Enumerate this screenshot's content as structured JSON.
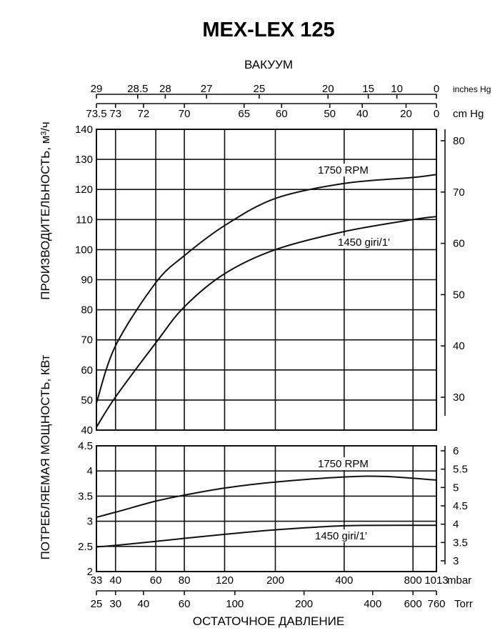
{
  "title": "MEX-LEX 125",
  "chart_data": [
    {
      "type": "line",
      "panel": "capacity",
      "ylabel": "ПРОИЗВОДИТЕЛЬНОСТЬ, м³/ч",
      "ylim": [
        40,
        140
      ],
      "yticks": [
        40,
        50,
        60,
        70,
        80,
        90,
        100,
        110,
        120,
        130,
        140
      ],
      "y2ticks": [
        30,
        40,
        50,
        60,
        70,
        80
      ],
      "xscale": "log",
      "xlabel": "ОСТАТОЧНОЕ ДАВЛЕНИЕ",
      "x_unit": "mbar",
      "grid": true,
      "series": [
        {
          "name": "1750 RPM",
          "x": [
            33,
            40,
            60,
            80,
            120,
            200,
            400,
            800,
            1013
          ],
          "y": [
            49,
            68,
            89,
            98,
            108,
            117,
            122,
            124,
            125
          ]
        },
        {
          "name": "1450 giri/1'",
          "x": [
            33,
            40,
            60,
            80,
            120,
            200,
            400,
            800,
            1013
          ],
          "y": [
            41,
            51,
            69,
            81,
            92,
            100,
            106,
            110,
            111
          ]
        }
      ]
    },
    {
      "type": "line",
      "panel": "power",
      "ylabel": "ПОТРЕБЛЯЕМАЯ МОЩНОСТЬ, КВт",
      "ylim": [
        2,
        4.5
      ],
      "yticks": [
        "2",
        "2.5",
        "3",
        "3.5",
        "4",
        "4.5"
      ],
      "y2ticks": [
        "3",
        "3.5",
        "4",
        "4.5",
        "5",
        "5.5",
        "6"
      ],
      "xscale": "log",
      "x_unit": "mbar",
      "grid": true,
      "series": [
        {
          "name": "1750 RPM",
          "x": [
            33,
            40,
            60,
            80,
            120,
            200,
            400,
            600,
            1013
          ],
          "y": [
            3.08,
            3.18,
            3.4,
            3.52,
            3.66,
            3.78,
            3.88,
            3.89,
            3.82
          ]
        },
        {
          "name": "1450 giri/1'",
          "x": [
            33,
            40,
            60,
            80,
            120,
            200,
            400,
            800,
            1013
          ],
          "y": [
            2.49,
            2.52,
            2.6,
            2.66,
            2.74,
            2.83,
            2.91,
            2.92,
            2.92
          ]
        }
      ]
    }
  ],
  "top_axis": {
    "label": "ВАКУУМ",
    "inches": {
      "unit": "inches  Hg",
      "ticks": [
        "29",
        "28.5",
        "28",
        "27",
        "25",
        "20",
        "15",
        "10",
        "0"
      ],
      "mbar": [
        33,
        50,
        66,
        100,
        170,
        340,
        510,
        680,
        1013
      ]
    },
    "cm": {
      "unit": "cm  Hg",
      "ticks": [
        "73.5",
        "73",
        "72",
        "70",
        "65",
        "60",
        "50",
        "40",
        "20",
        "0"
      ],
      "mbar": [
        33,
        40,
        53,
        80,
        146,
        213,
        346,
        480,
        746,
        1013
      ]
    }
  },
  "bottom_axis": {
    "mbar": {
      "unit": "mbar",
      "ticks": [
        "33",
        "40",
        "60",
        "80",
        "120",
        "200",
        "400",
        "800",
        "1013"
      ],
      "values": [
        33,
        40,
        60,
        80,
        120,
        200,
        400,
        800,
        1013
      ]
    },
    "torr": {
      "unit": "Torr",
      "ticks": [
        "25",
        "30",
        "40",
        "60",
        "100",
        "200",
        "400",
        "600",
        "760"
      ],
      "values": [
        33,
        40,
        53,
        80,
        133,
        267,
        533,
        800,
        1013
      ]
    }
  },
  "gridlines_mbar": [
    40,
    60,
    80,
    120,
    200,
    400,
    800
  ]
}
